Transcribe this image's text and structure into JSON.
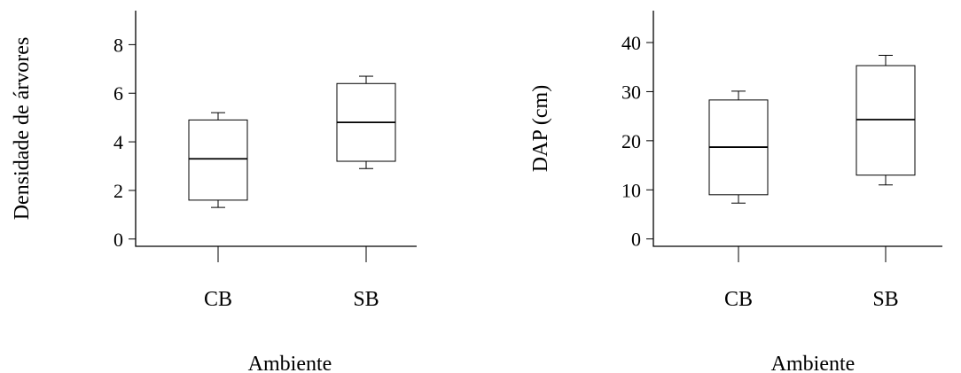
{
  "chart_data": [
    {
      "type": "box",
      "xlabel": "Ambiente",
      "ylabel": "Densidade de árvores",
      "categories": [
        "CB",
        "SB"
      ],
      "ylim": [
        -0.3,
        9.4
      ],
      "yticks": [
        "0",
        "2",
        "4",
        "6",
        "8"
      ],
      "boxes": [
        {
          "category": "CB",
          "min": 1.3,
          "q1": 1.6,
          "median": 3.3,
          "q3": 4.9,
          "max": 5.2
        },
        {
          "category": "SB",
          "min": 2.9,
          "q1": 3.2,
          "median": 4.8,
          "q3": 6.4,
          "max": 6.7
        }
      ],
      "grid": false
    },
    {
      "type": "box",
      "xlabel": "Ambiente",
      "ylabel": "DAP (cm)",
      "categories": [
        "CB",
        "SB"
      ],
      "ylim": [
        -1.5,
        46.5
      ],
      "yticks": [
        "0",
        "10",
        "20",
        "30",
        "40"
      ],
      "boxes": [
        {
          "category": "CB",
          "min": 7.3,
          "q1": 9.0,
          "median": 18.7,
          "q3": 28.3,
          "max": 30.1
        },
        {
          "category": "SB",
          "min": 11.0,
          "q1": 13.0,
          "median": 24.3,
          "q3": 35.3,
          "max": 37.4
        }
      ],
      "grid": false
    }
  ]
}
